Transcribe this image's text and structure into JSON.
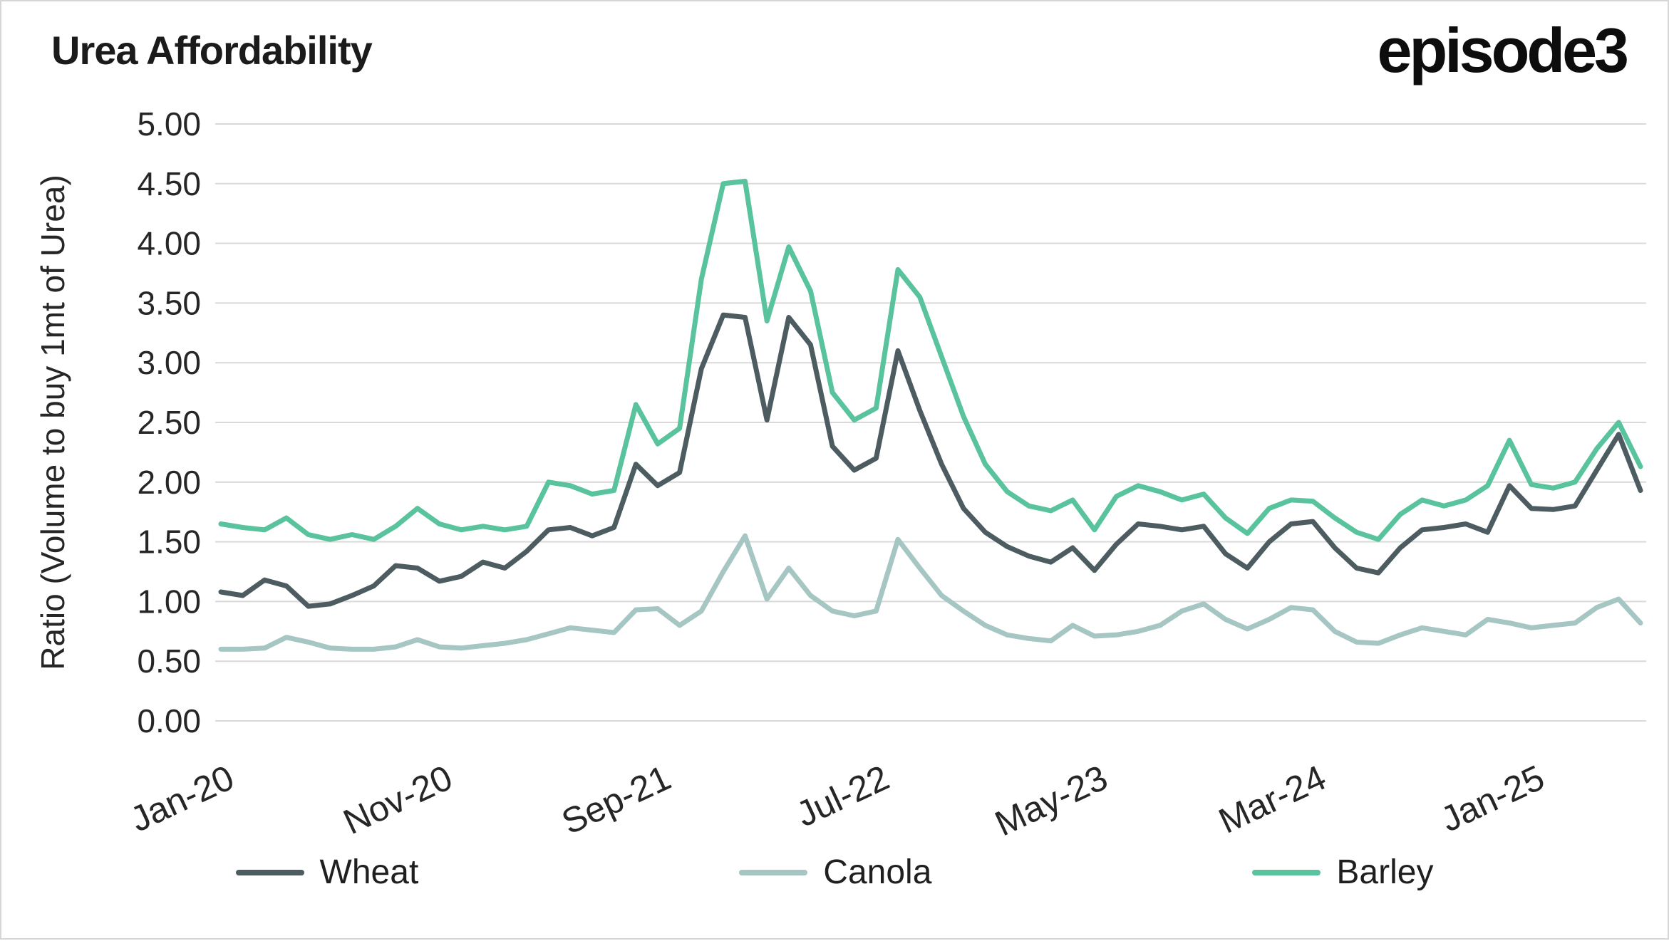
{
  "header": {
    "title": "Urea Affordability",
    "logo": "episode3"
  },
  "chart_data": {
    "type": "line",
    "title": "Urea Affordability",
    "xlabel": "",
    "ylabel": "Ratio (Volume to buy 1mt of Urea)",
    "ylim": [
      0,
      5
    ],
    "ytick_step": 0.5,
    "y_tick_labels": [
      "0.00",
      "0.50",
      "1.00",
      "1.50",
      "2.00",
      "2.50",
      "3.00",
      "3.50",
      "4.00",
      "4.50",
      "5.00"
    ],
    "x_unit": "month-index",
    "x_tick_positions": [
      0,
      10,
      20,
      30,
      40,
      50,
      60
    ],
    "x_tick_labels": [
      "Jan-20",
      "Nov-20",
      "Sep-21",
      "Jul-22",
      "May-23",
      "Mar-24",
      "Jan-25"
    ],
    "grid": "horizontal",
    "legend_position": "bottom",
    "colors": {
      "grid": "#d9d9d9",
      "axis_text": "#262626"
    },
    "series": [
      {
        "name": "Wheat",
        "color": "#4c5c60",
        "values": [
          1.08,
          1.05,
          1.18,
          1.13,
          0.96,
          0.98,
          1.05,
          1.13,
          1.3,
          1.28,
          1.17,
          1.21,
          1.33,
          1.28,
          1.42,
          1.6,
          1.62,
          1.55,
          1.62,
          2.15,
          1.97,
          2.08,
          2.95,
          3.4,
          3.38,
          2.52,
          3.38,
          3.15,
          2.3,
          2.1,
          2.2,
          3.1,
          2.6,
          2.15,
          1.78,
          1.58,
          1.46,
          1.38,
          1.33,
          1.45,
          1.26,
          1.48,
          1.65,
          1.63,
          1.6,
          1.63,
          1.4,
          1.28,
          1.5,
          1.65,
          1.67,
          1.45,
          1.28,
          1.24,
          1.45,
          1.6,
          1.62,
          1.65,
          1.58,
          1.97,
          1.78,
          1.77,
          1.8,
          2.1,
          2.4,
          1.93
        ]
      },
      {
        "name": "Canola",
        "color": "#a5c6c2",
        "values": [
          0.6,
          0.6,
          0.61,
          0.7,
          0.66,
          0.61,
          0.6,
          0.6,
          0.62,
          0.68,
          0.62,
          0.61,
          0.63,
          0.65,
          0.68,
          0.73,
          0.78,
          0.76,
          0.74,
          0.93,
          0.94,
          0.8,
          0.92,
          1.25,
          1.55,
          1.02,
          1.28,
          1.05,
          0.92,
          0.88,
          0.92,
          1.52,
          1.28,
          1.05,
          0.92,
          0.8,
          0.72,
          0.69,
          0.67,
          0.8,
          0.71,
          0.72,
          0.75,
          0.8,
          0.92,
          0.98,
          0.85,
          0.77,
          0.85,
          0.95,
          0.93,
          0.75,
          0.66,
          0.65,
          0.72,
          0.78,
          0.75,
          0.72,
          0.85,
          0.82,
          0.78,
          0.8,
          0.82,
          0.95,
          1.02,
          0.82
        ]
      },
      {
        "name": "Barley",
        "color": "#58c39c",
        "values": [
          1.65,
          1.62,
          1.6,
          1.7,
          1.56,
          1.52,
          1.56,
          1.52,
          1.63,
          1.78,
          1.65,
          1.6,
          1.63,
          1.6,
          1.63,
          2.0,
          1.97,
          1.9,
          1.93,
          2.65,
          2.32,
          2.45,
          3.7,
          4.5,
          4.52,
          3.35,
          3.97,
          3.6,
          2.75,
          2.52,
          2.62,
          3.78,
          3.55,
          3.05,
          2.55,
          2.15,
          1.92,
          1.8,
          1.76,
          1.85,
          1.6,
          1.88,
          1.97,
          1.92,
          1.85,
          1.9,
          1.7,
          1.57,
          1.78,
          1.85,
          1.84,
          1.7,
          1.58,
          1.52,
          1.73,
          1.85,
          1.8,
          1.85,
          1.97,
          2.35,
          1.98,
          1.95,
          2.0,
          2.28,
          2.5,
          2.13
        ]
      }
    ]
  }
}
